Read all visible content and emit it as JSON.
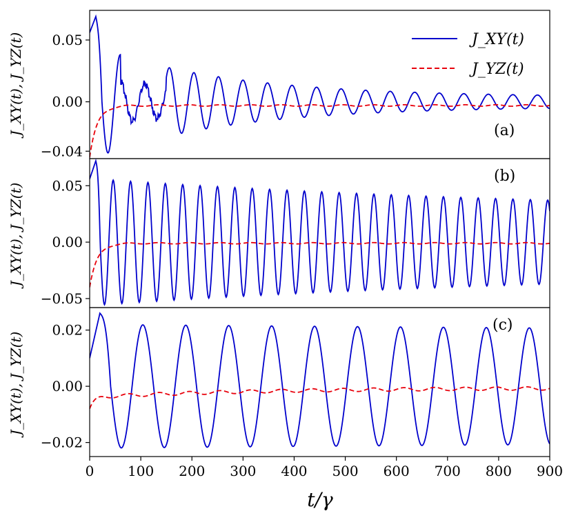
{
  "figure": {
    "xlabel_main": "t/γ",
    "ylabel": "J_XY(t), J_YZ(t)"
  },
  "chart_data": [
    {
      "type": "line",
      "panel_label": "(a)",
      "xlim": [
        0,
        900
      ],
      "ylim": [
        -0.046,
        0.074
      ],
      "yticks": [
        0.05,
        0.0,
        -0.04
      ],
      "ytick_labels": [
        "0.05",
        "0.00",
        "−0.04"
      ],
      "legend": {
        "placement": "top-right",
        "entries": [
          "J_XY(t)",
          "J_YZ(t)"
        ]
      },
      "series": [
        {
          "name": "J_XY(t)",
          "color": "#0000cc",
          "style": "solid",
          "model": {
            "initial": 0.056,
            "peak": 0.069,
            "peak_t": 12,
            "period": 48,
            "amplitude_start": 0.045,
            "amplitude_end": 0.004,
            "decay_time": 260,
            "early_chaotic": true
          }
        },
        {
          "name": "J_YZ(t)",
          "color": "#e8000b",
          "style": "dashed",
          "model": {
            "start": -0.045,
            "plateau": -0.003,
            "rise_time": 15
          }
        }
      ]
    },
    {
      "type": "line",
      "panel_label": "(b)",
      "xlim": [
        0,
        900
      ],
      "ylim": [
        -0.058,
        0.074
      ],
      "yticks": [
        0.05,
        0.0,
        -0.05
      ],
      "ytick_labels": [
        "0.05",
        "0.00",
        "−0.05"
      ],
      "series": [
        {
          "name": "J_XY(t)",
          "color": "#0000cc",
          "style": "solid",
          "model": {
            "initial": 0.056,
            "peak": 0.072,
            "peak_t": 12,
            "period": 34,
            "amplitude_start": 0.056,
            "amplitude_end": 0.024,
            "decay_time": 1000
          }
        },
        {
          "name": "J_YZ(t)",
          "color": "#e8000b",
          "style": "dashed",
          "model": {
            "start": -0.04,
            "plateau": -0.001,
            "rise_time": 15
          }
        }
      ]
    },
    {
      "type": "line",
      "panel_label": "(c)",
      "xlim": [
        0,
        900
      ],
      "ylim": [
        -0.025,
        0.028
      ],
      "yticks": [
        0.02,
        0.0,
        -0.02
      ],
      "ytick_labels": [
        "0.02",
        "0.00",
        "−0.02"
      ],
      "series": [
        {
          "name": "J_XY(t)",
          "color": "#0000cc",
          "style": "solid",
          "model": {
            "initial": 0.01,
            "peak": 0.026,
            "peak_t": 20,
            "period": 84,
            "amplitude_start": 0.022,
            "amplitude_end": 0.017,
            "decay_time": 3000
          }
        },
        {
          "name": "J_YZ(t)",
          "color": "#e8000b",
          "style": "dashed",
          "model": {
            "start": -0.008,
            "plateau": -0.0005,
            "rise_time": 10,
            "slow_rise": true
          }
        }
      ]
    }
  ],
  "shared_x": {
    "xlim": [
      0,
      900
    ],
    "xticks": [
      0,
      100,
      200,
      300,
      400,
      500,
      600,
      700,
      800,
      900
    ],
    "xtick_labels": [
      "0",
      "100",
      "200",
      "300",
      "400",
      "500",
      "600",
      "700",
      "800",
      "900"
    ]
  }
}
